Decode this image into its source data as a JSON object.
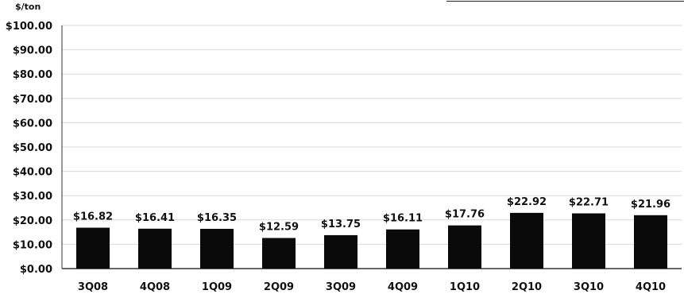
{
  "chart_data": {
    "type": "bar",
    "ylabel": "$/ton",
    "categories": [
      "3Q08",
      "4Q08",
      "1Q09",
      "2Q09",
      "3Q09",
      "4Q09",
      "1Q10",
      "2Q10",
      "3Q10",
      "4Q10"
    ],
    "values": [
      16.82,
      16.41,
      16.35,
      12.59,
      13.75,
      16.11,
      17.76,
      22.92,
      22.71,
      21.96
    ],
    "data_labels": [
      "$16.82",
      "$16.41",
      "$16.35",
      "$12.59",
      "$13.75",
      "$16.11",
      "$17.76",
      "$22.92",
      "$22.71",
      "$21.96"
    ],
    "y_ticks": [
      0,
      10,
      20,
      30,
      40,
      50,
      60,
      70,
      80,
      90,
      100
    ],
    "y_tick_labels": [
      "$0.00",
      "$10.00",
      "$20.00",
      "$30.00",
      "$40.00",
      "$50.00",
      "$60.00",
      "$70.00",
      "$80.00",
      "$90.00",
      "$100.00"
    ],
    "ylim": [
      0,
      100
    ],
    "grid": true,
    "legend": "none",
    "colors": {
      "bar": "#0a0a0a",
      "grid": "#d8d8d8",
      "axis": "#333333",
      "text": "#111111"
    }
  }
}
